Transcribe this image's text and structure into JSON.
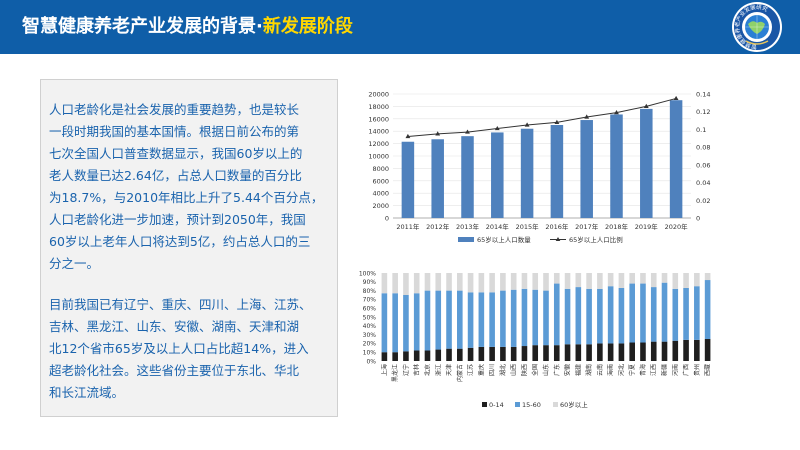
{
  "header": {
    "title_main": "智慧健康养老产业发展的背景·",
    "title_highlight": "新发展阶段",
    "bg_color": "#0f5ea8",
    "highlight_color": "#ffd700"
  },
  "logo": {
    "ring_text": "智慧健康养老产业发展研究"
  },
  "text": {
    "p1_lines": [
      "人口老龄化是社会发展的重要趋势，也是较长",
      "一段时期我国的基本国情。根据日前公布的第",
      "七次全国人口普查数据显示，我国60岁以上的",
      "老人数量已达2.64亿，占总人口数量的百分比",
      "为18.7%，与2010年相比上升了5.44个百分点，",
      "人口老龄化进一步加速，预计到2050年，我国",
      "60岁以上老年人口将达到5亿，约占总人口的三",
      "分之一。"
    ],
    "p2_lines": [
      "目前我国已有辽宁、重庆、四川、上海、江苏、",
      "吉林、黑龙江、山东、安徽、湖南、天津和湖",
      "北12个省市65岁及以上人口占比超14%，进入",
      "超老龄化社会。这些省份主要位于东北、华北",
      "和长江流域。"
    ],
    "text_color": "#1a63ad"
  },
  "chart_data": [
    {
      "type": "bar",
      "categories": [
        "2011年",
        "2012年",
        "2013年",
        "2014年",
        "2015年",
        "2016年",
        "2017年",
        "2018年",
        "2019年",
        "2020年"
      ],
      "series": [
        {
          "name": "65岁以上人口数量",
          "type": "bar",
          "axis": "left",
          "values": [
            12300,
            12700,
            13200,
            13800,
            14400,
            15000,
            15800,
            16700,
            17600,
            19000
          ]
        },
        {
          "name": "65岁以上人口比例",
          "type": "line",
          "axis": "right",
          "values": [
            0.092,
            0.095,
            0.097,
            0.101,
            0.105,
            0.108,
            0.114,
            0.119,
            0.126,
            0.135
          ]
        }
      ],
      "ylim_left": [
        0,
        20000
      ],
      "yticks_left": [
        0,
        2000,
        4000,
        6000,
        8000,
        10000,
        12000,
        14000,
        16000,
        18000,
        20000
      ],
      "ylim_right": [
        0,
        0.14
      ],
      "yticks_right": [
        0,
        0.02,
        0.04,
        0.06,
        0.08,
        0.1,
        0.12,
        0.14
      ],
      "legend": "bottom",
      "colors": {
        "bar": "#4f81bd",
        "line": "#333333"
      }
    },
    {
      "type": "stacked_bar",
      "categories": [
        "上海",
        "黑龙江",
        "辽宁",
        "吉林",
        "北京",
        "浙江",
        "天津",
        "内蒙古",
        "江苏",
        "重庆",
        "四川",
        "湖北",
        "山西",
        "陕西",
        "全国",
        "山东",
        "广东",
        "安徽",
        "福建",
        "湖南",
        "云南",
        "海南",
        "河北",
        "宁夏",
        "青海",
        "江西",
        "新疆",
        "河南",
        "广西",
        "贵州",
        "西藏"
      ],
      "series": [
        {
          "name": "0-14",
          "values": [
            10,
            10,
            11,
            12,
            12,
            13,
            14,
            14,
            15,
            16,
            16,
            16,
            16,
            17,
            18,
            18,
            18,
            19,
            19,
            19,
            20,
            20,
            20,
            21,
            21,
            22,
            22,
            23,
            24,
            24,
            25
          ]
        },
        {
          "name": "15-60",
          "values": [
            67,
            67,
            64,
            65,
            68,
            67,
            66,
            66,
            63,
            62,
            62,
            64,
            65,
            65,
            63,
            62,
            70,
            63,
            65,
            63,
            62,
            65,
            63,
            67,
            67,
            62,
            67,
            59,
            59,
            61,
            67
          ]
        },
        {
          "name": "60岁以上",
          "values": [
            23,
            23,
            25,
            23,
            20,
            20,
            20,
            20,
            22,
            22,
            22,
            20,
            19,
            18,
            19,
            20,
            12,
            18,
            16,
            18,
            18,
            15,
            17,
            12,
            12,
            16,
            11,
            18,
            17,
            15,
            8
          ]
        }
      ],
      "ylim": [
        0,
        100
      ],
      "yticks": [
        "0%",
        "10%",
        "20%",
        "30%",
        "40%",
        "50%",
        "60%",
        "70%",
        "80%",
        "90%",
        "100%"
      ],
      "legend": "bottom",
      "colors": {
        "0-14": "#1f1f1f",
        "15-60": "#5b9bd5",
        "60岁以上": "#d9d9d9"
      }
    }
  ]
}
